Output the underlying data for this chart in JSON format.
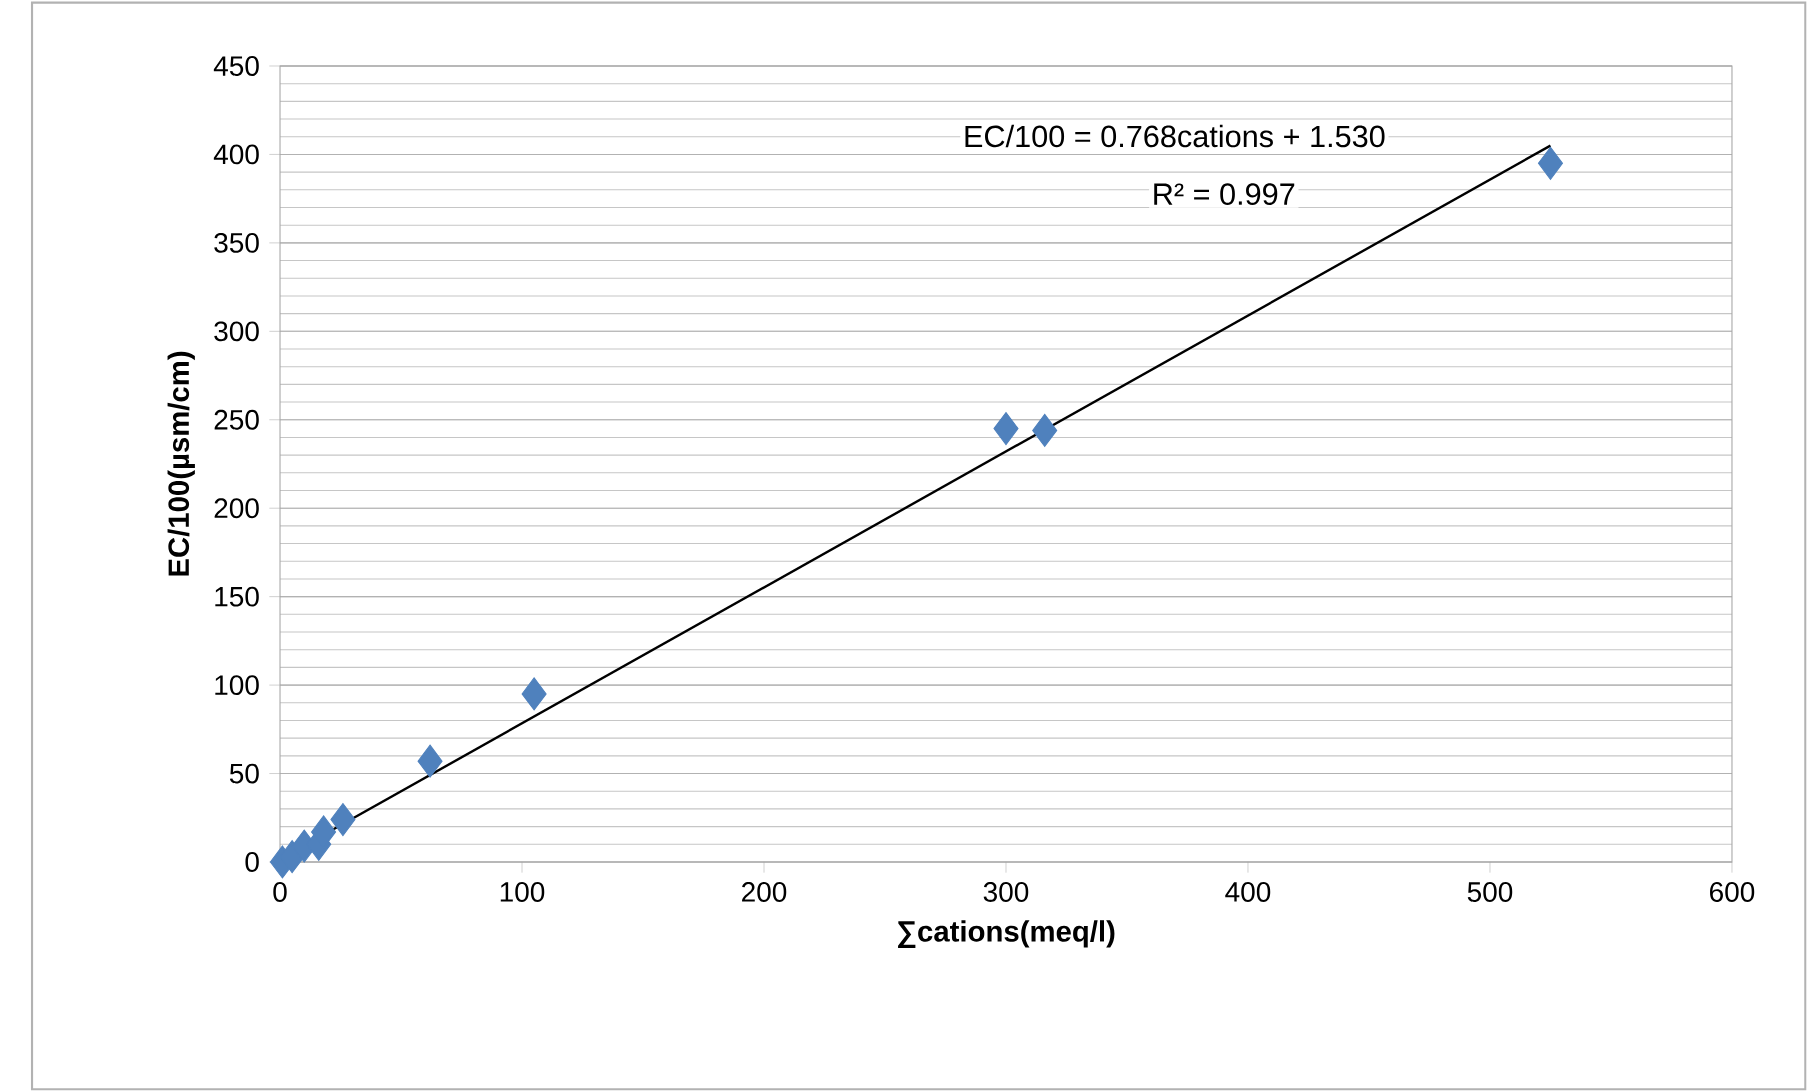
{
  "chart_data": {
    "type": "scatter",
    "xlabel": "∑cations(meq/l)",
    "ylabel": "EC/100(µsm/cm)",
    "xlim": [
      0,
      600
    ],
    "xticks": [
      0,
      100,
      200,
      300,
      400,
      500,
      600
    ],
    "ylim": [
      0,
      450
    ],
    "yticks": [
      0,
      50,
      100,
      150,
      200,
      250,
      300,
      350,
      400,
      450
    ],
    "grid": "y",
    "marker": "diamond",
    "annotations": [
      "EC/100 = 0.768cations + 1.530",
      "R² = 0.997"
    ],
    "series": [
      {
        "color": "#4f81bd",
        "x": [
          1,
          5,
          10,
          16,
          18,
          26,
          62,
          105,
          300,
          316,
          525
        ],
        "values": [
          0,
          3,
          9,
          10,
          17,
          24,
          57,
          95,
          245,
          244,
          395
        ]
      },
      {
        "type": "line",
        "color": "#000000",
        "marker": "none",
        "x": [
          0,
          525
        ],
        "values": [
          1.5,
          405
        ]
      }
    ]
  }
}
